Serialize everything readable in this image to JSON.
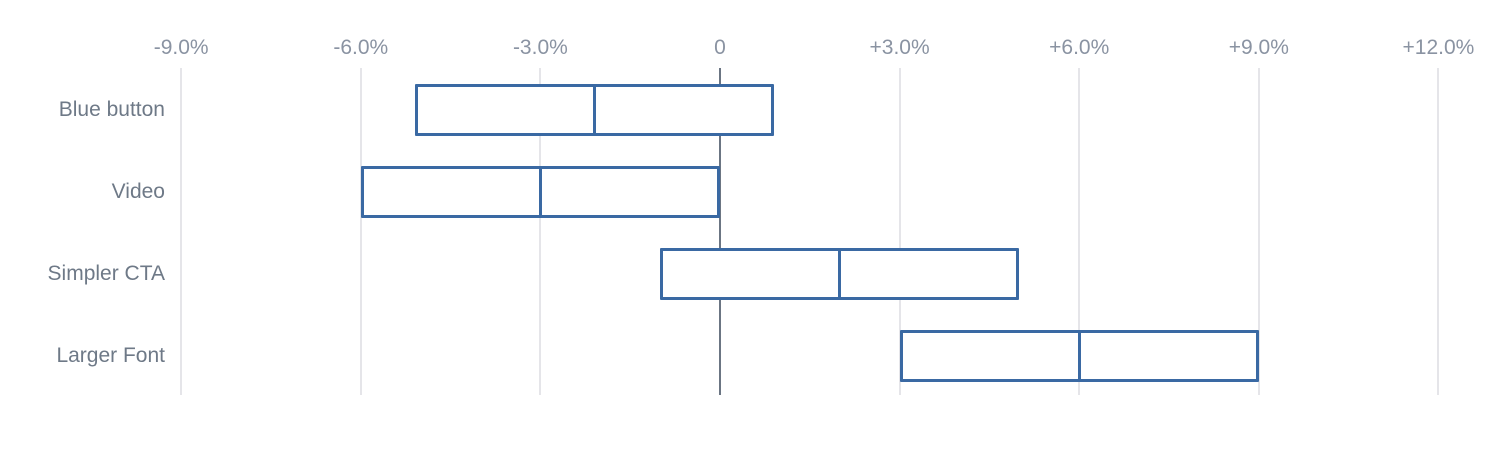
{
  "chart_data": {
    "type": "bar",
    "subtype": "horizontal_range_boxes_with_midline",
    "title": "",
    "categories": [
      "Blue button",
      "Video",
      "Simpler CTA",
      "Larger Font"
    ],
    "series": [
      {
        "name": "Blue button",
        "low": -5.1,
        "mid": -2.1,
        "high": 0.9
      },
      {
        "name": "Video",
        "low": -6.0,
        "mid": -3.0,
        "high": 0.0
      },
      {
        "name": "Simpler CTA",
        "low": -1.0,
        "mid": 2.0,
        "high": 5.0
      },
      {
        "name": "Larger Font",
        "low": 3.0,
        "mid": 6.0,
        "high": 9.0
      }
    ],
    "value_unit": "%",
    "x_axis": {
      "position": "top",
      "ticks": [
        {
          "value": -9,
          "label": "-9.0%"
        },
        {
          "value": -6,
          "label": "-6.0%"
        },
        {
          "value": -3,
          "label": "-3.0%"
        },
        {
          "value": 0,
          "label": "0"
        },
        {
          "value": 3,
          "label": "+3.0%"
        },
        {
          "value": 6,
          "label": "+6.0%"
        },
        {
          "value": 9,
          "label": "+9.0%"
        },
        {
          "value": 12,
          "label": "+12.0%"
        }
      ],
      "gridlines": true,
      "zero_line_emphasized": true
    },
    "legend": "none",
    "colors": {
      "background": "#ffffff",
      "box_border": "#3a69a3",
      "box_fill": "#ffffff",
      "zero_line": "#6b7583",
      "gridline": "#e5e5e9",
      "tick_label": "#8a93a2",
      "category_label": "#6e7987"
    }
  }
}
